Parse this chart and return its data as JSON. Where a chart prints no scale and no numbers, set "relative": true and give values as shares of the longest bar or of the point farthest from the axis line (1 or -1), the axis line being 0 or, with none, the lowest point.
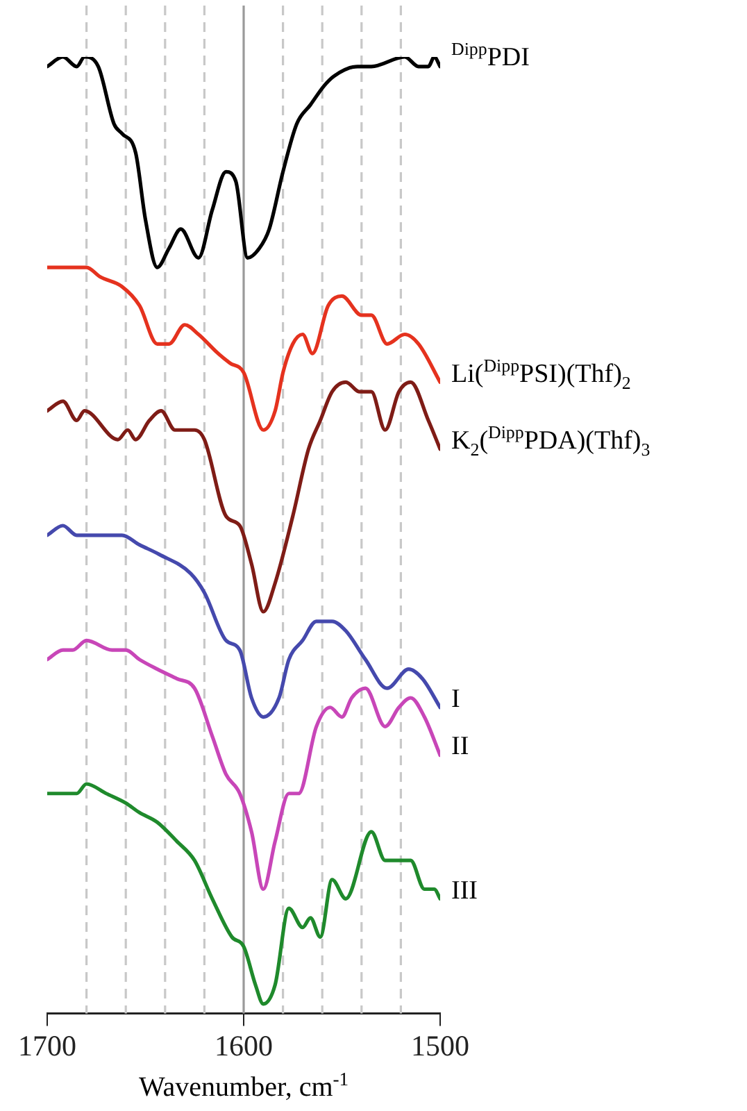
{
  "chart_data": {
    "type": "line",
    "xlabel": "Wavenumber, cm$^{-1}$",
    "xlim": [
      1700,
      1500
    ],
    "xticks": [
      1700,
      1600,
      1500
    ],
    "relative": true,
    "marker": "none",
    "line_style": "solid",
    "ref_lines": [
      {
        "axis": "x",
        "value": 1680,
        "line_style": "dashed",
        "color": "#c8c8c8"
      },
      {
        "axis": "x",
        "value": 1660,
        "line_style": "dashed",
        "color": "#c8c8c8"
      },
      {
        "axis": "x",
        "value": 1640,
        "line_style": "dashed",
        "color": "#c8c8c8"
      },
      {
        "axis": "x",
        "value": 1620,
        "line_style": "dashed",
        "color": "#c8c8c8"
      },
      {
        "axis": "x",
        "value": 1600,
        "line_style": "solid",
        "color": "#9a9a9a"
      },
      {
        "axis": "x",
        "value": 1580,
        "line_style": "dashed",
        "color": "#c8c8c8"
      },
      {
        "axis": "x",
        "value": 1560,
        "line_style": "dashed",
        "color": "#c8c8c8"
      },
      {
        "axis": "x",
        "value": 1540,
        "line_style": "dashed",
        "color": "#c8c8c8"
      },
      {
        "axis": "x",
        "value": 1520,
        "line_style": "dashed",
        "color": "#c8c8c8"
      }
    ],
    "series": [
      {
        "name": "$^{Dipp}$PDI",
        "color": "#000000",
        "x": [
          1700,
          1692,
          1685,
          1681,
          1674,
          1666,
          1662,
          1655,
          1650,
          1644,
          1638,
          1632,
          1623,
          1616,
          1609,
          1604,
          1598,
          1592,
          1587,
          1580,
          1573,
          1566,
          1559,
          1554,
          1542,
          1535,
          1518,
          1511,
          1506,
          1503,
          1500
        ],
        "values": [
          0.99,
          1.0,
          0.99,
          1.0,
          0.99,
          0.93,
          0.92,
          0.9,
          0.83,
          0.78,
          0.8,
          0.82,
          0.79,
          0.84,
          0.88,
          0.87,
          0.79,
          0.8,
          0.82,
          0.88,
          0.93,
          0.95,
          0.97,
          0.98,
          0.99,
          0.99,
          1.0,
          0.99,
          0.99,
          1.0,
          0.99
        ]
      },
      {
        "name": "Li($^{Dipp}$PSI)(Thf)$_{2}$",
        "color": "#e5321e",
        "x": [
          1700,
          1692,
          1685,
          1680,
          1673,
          1662,
          1653,
          1644,
          1638,
          1630,
          1623,
          1613,
          1607,
          1600,
          1590,
          1584,
          1580,
          1575,
          1570,
          1565,
          1557,
          1550,
          1540,
          1535,
          1527,
          1518,
          1511,
          1500
        ],
        "values": [
          0.78,
          0.78,
          0.78,
          0.78,
          0.77,
          0.76,
          0.74,
          0.7,
          0.7,
          0.72,
          0.71,
          0.69,
          0.68,
          0.67,
          0.61,
          0.63,
          0.67,
          0.7,
          0.71,
          0.69,
          0.74,
          0.75,
          0.73,
          0.73,
          0.7,
          0.71,
          0.7,
          0.66
        ]
      },
      {
        "name": "K$_{2}$($^{Dipp}$PDA)(Thf)$_{3}$",
        "color": "#7f1c16",
        "x": [
          1700,
          1692,
          1685,
          1681,
          1664,
          1659,
          1655,
          1648,
          1642,
          1635,
          1625,
          1620,
          1609,
          1602,
          1596,
          1590,
          1584,
          1575,
          1567,
          1561,
          1555,
          1548,
          1541,
          1535,
          1528,
          1521,
          1515,
          1506,
          1500
        ],
        "values": [
          0.63,
          0.64,
          0.62,
          0.63,
          0.6,
          0.61,
          0.6,
          0.62,
          0.63,
          0.61,
          0.61,
          0.6,
          0.52,
          0.51,
          0.47,
          0.42,
          0.45,
          0.52,
          0.59,
          0.62,
          0.65,
          0.66,
          0.65,
          0.65,
          0.61,
          0.65,
          0.66,
          0.62,
          0.59
        ]
      },
      {
        "name": "I",
        "color": "#4549ad",
        "x": [
          1700,
          1692,
          1685,
          1680,
          1662,
          1653,
          1643,
          1627,
          1620,
          1609,
          1602,
          1596,
          1590,
          1582,
          1577,
          1570,
          1563,
          1555,
          1548,
          1538,
          1527,
          1516,
          1509,
          1500
        ],
        "values": [
          0.5,
          0.51,
          0.5,
          0.5,
          0.5,
          0.49,
          0.48,
          0.46,
          0.44,
          0.39,
          0.38,
          0.33,
          0.31,
          0.33,
          0.37,
          0.39,
          0.41,
          0.41,
          0.4,
          0.37,
          0.34,
          0.36,
          0.35,
          0.32
        ]
      },
      {
        "name": "II",
        "color": "#c846b8",
        "x": [
          1700,
          1692,
          1687,
          1680,
          1667,
          1660,
          1653,
          1644,
          1634,
          1625,
          1616,
          1609,
          1602,
          1596,
          1590,
          1584,
          1577,
          1572,
          1563,
          1556,
          1550,
          1545,
          1538,
          1528,
          1521,
          1515,
          1508,
          1500
        ],
        "values": [
          0.37,
          0.38,
          0.38,
          0.39,
          0.38,
          0.38,
          0.37,
          0.36,
          0.35,
          0.34,
          0.29,
          0.25,
          0.23,
          0.19,
          0.13,
          0.18,
          0.23,
          0.23,
          0.3,
          0.32,
          0.31,
          0.33,
          0.34,
          0.3,
          0.32,
          0.33,
          0.31,
          0.27
        ]
      },
      {
        "name": "III",
        "color": "#1f8a2c",
        "x": [
          1700,
          1689,
          1685,
          1680,
          1670,
          1660,
          1653,
          1644,
          1634,
          1625,
          1616,
          1606,
          1600,
          1594,
          1590,
          1584,
          1577,
          1570,
          1566,
          1561,
          1555,
          1548,
          1535,
          1528,
          1521,
          1515,
          1508,
          1503,
          1500
        ],
        "values": [
          0.23,
          0.23,
          0.23,
          0.24,
          0.23,
          0.22,
          0.21,
          0.2,
          0.18,
          0.16,
          0.12,
          0.08,
          0.07,
          0.03,
          0.01,
          0.03,
          0.11,
          0.09,
          0.1,
          0.08,
          0.14,
          0.12,
          0.19,
          0.16,
          0.16,
          0.16,
          0.13,
          0.13,
          0.12
        ]
      }
    ]
  }
}
